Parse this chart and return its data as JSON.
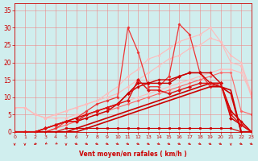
{
  "xlabel": "Vent moyen/en rafales ( km/h )",
  "xlim": [
    0,
    23
  ],
  "ylim": [
    0,
    37
  ],
  "yticks": [
    0,
    5,
    10,
    15,
    20,
    25,
    30,
    35
  ],
  "xticks": [
    0,
    1,
    2,
    3,
    4,
    5,
    6,
    7,
    8,
    9,
    10,
    11,
    12,
    13,
    14,
    15,
    16,
    17,
    18,
    19,
    20,
    21,
    22,
    23
  ],
  "background_color": "#d0eeee",
  "grid_color": "#ee8888",
  "lines": [
    {
      "x": [
        0,
        1,
        2,
        3,
        4,
        5,
        6,
        7,
        8,
        9,
        10,
        11,
        12,
        13,
        14,
        15,
        16,
        17,
        18,
        19,
        20,
        21,
        22,
        23
      ],
      "y": [
        7,
        7,
        5,
        4,
        4,
        4,
        5,
        5,
        6,
        7,
        8,
        9,
        10,
        11,
        12,
        13,
        14,
        15,
        16,
        17,
        18,
        18,
        17,
        11
      ],
      "color": "#ffbbbb",
      "marker": "D",
      "markersize": 1.5,
      "linewidth": 0.8,
      "zorder": 2
    },
    {
      "x": [
        0,
        1,
        2,
        3,
        4,
        5,
        6,
        7,
        8,
        9,
        10,
        11,
        12,
        13,
        14,
        15,
        16,
        17,
        18,
        19,
        20,
        21,
        22,
        23
      ],
      "y": [
        7,
        7,
        5,
        4,
        5,
        6,
        7,
        8,
        9,
        11,
        13,
        16,
        18,
        21,
        22,
        24,
        26,
        27,
        28,
        30,
        26,
        22,
        20,
        11
      ],
      "color": "#ffbbbb",
      "marker": "D",
      "markersize": 1.5,
      "linewidth": 0.8,
      "zorder": 2
    },
    {
      "x": [
        0,
        1,
        2,
        3,
        4,
        5,
        6,
        7,
        8,
        9,
        10,
        11,
        12,
        13,
        14,
        15,
        16,
        17,
        18,
        19,
        20,
        21,
        22,
        23
      ],
      "y": [
        7,
        7,
        5,
        4,
        5,
        6,
        7,
        8,
        9,
        10,
        11,
        13,
        15,
        17,
        19,
        21,
        22,
        24,
        25,
        27,
        26,
        20,
        19,
        10
      ],
      "color": "#ffbbbb",
      "marker": "D",
      "markersize": 1.5,
      "linewidth": 0.8,
      "zorder": 2
    },
    {
      "x": [
        0,
        1,
        2,
        3,
        4,
        5,
        6,
        7,
        8,
        9,
        10,
        11,
        12,
        13,
        14,
        15,
        16,
        17,
        18,
        19,
        20,
        21,
        22,
        23
      ],
      "y": [
        0,
        0,
        0,
        0,
        1,
        2,
        3,
        4,
        5,
        6,
        7,
        8,
        9,
        10,
        11,
        12,
        13,
        14,
        15,
        16,
        17,
        17,
        6,
        5
      ],
      "color": "#ff6666",
      "marker": "D",
      "markersize": 1.5,
      "linewidth": 0.8,
      "zorder": 2
    },
    {
      "x": [
        0,
        1,
        2,
        3,
        4,
        5,
        6,
        7,
        8,
        9,
        10,
        11,
        12,
        13,
        14,
        15,
        16,
        17,
        18,
        19,
        20,
        21,
        22,
        23
      ],
      "y": [
        0,
        0,
        0,
        0,
        1,
        3,
        4,
        6,
        8,
        9,
        10,
        30,
        23,
        13,
        13,
        16,
        31,
        28,
        17,
        13,
        14,
        6,
        3,
        0
      ],
      "color": "#ee3333",
      "marker": "D",
      "markersize": 1.5,
      "linewidth": 0.9,
      "zorder": 3
    },
    {
      "x": [
        0,
        1,
        2,
        3,
        4,
        5,
        6,
        7,
        8,
        9,
        10,
        11,
        12,
        13,
        14,
        15,
        16,
        17,
        18,
        19,
        20,
        21,
        22,
        23
      ],
      "y": [
        0,
        0,
        0,
        1,
        2,
        3,
        3,
        4,
        5,
        6,
        8,
        11,
        13,
        14,
        15,
        15,
        16,
        17,
        17,
        17,
        14,
        6,
        3,
        0
      ],
      "color": "#cc0000",
      "marker": "P",
      "markersize": 2,
      "linewidth": 1.0,
      "zorder": 4
    },
    {
      "x": [
        0,
        1,
        2,
        3,
        4,
        5,
        6,
        7,
        8,
        9,
        10,
        11,
        12,
        13,
        14,
        15,
        16,
        17,
        18,
        19,
        20,
        21,
        22,
        23
      ],
      "y": [
        0,
        0,
        0,
        1,
        2,
        3,
        4,
        5,
        6,
        7,
        8,
        11,
        14,
        14,
        14,
        14,
        16,
        17,
        17,
        14,
        14,
        4,
        2,
        0
      ],
      "color": "#cc0000",
      "marker": "D",
      "markersize": 2,
      "linewidth": 1.0,
      "zorder": 4
    },
    {
      "x": [
        0,
        1,
        2,
        3,
        4,
        5,
        6,
        7,
        8,
        9,
        10,
        11,
        12,
        13,
        14,
        15,
        16,
        17,
        18,
        19,
        20,
        21,
        22,
        23
      ],
      "y": [
        0,
        0,
        0,
        1,
        2,
        3,
        3,
        5,
        6,
        7,
        8,
        9,
        15,
        12,
        12,
        11,
        12,
        13,
        14,
        14,
        14,
        5,
        2,
        0
      ],
      "color": "#dd1111",
      "marker": "D",
      "markersize": 2,
      "linewidth": 1.0,
      "zorder": 4
    },
    {
      "x": [
        0,
        1,
        2,
        3,
        4,
        5,
        6,
        7,
        8,
        9,
        10,
        11,
        12,
        13,
        14,
        15,
        16,
        17,
        18,
        19,
        20,
        21,
        22,
        23
      ],
      "y": [
        0,
        0,
        0,
        0,
        0,
        1,
        1,
        1,
        1,
        1,
        1,
        1,
        1,
        1,
        1,
        1,
        1,
        1,
        1,
        1,
        1,
        1,
        0,
        0
      ],
      "color": "#cc0000",
      "marker": "s",
      "markersize": 1.5,
      "linewidth": 0.8,
      "zorder": 3
    },
    {
      "x": [
        0,
        1,
        2,
        3,
        4,
        5,
        6,
        7,
        8,
        9,
        10,
        11,
        12,
        13,
        14,
        15,
        16,
        17,
        18,
        19,
        20,
        21,
        22,
        23
      ],
      "y": [
        0,
        0,
        0,
        0,
        0,
        0,
        1,
        2,
        3,
        4,
        5,
        6,
        7,
        8,
        9,
        10,
        11,
        12,
        13,
        14,
        13,
        12,
        0,
        0
      ],
      "color": "#cc0000",
      "marker": null,
      "markersize": 0,
      "linewidth": 1.2,
      "zorder": 3
    },
    {
      "x": [
        0,
        1,
        2,
        3,
        4,
        5,
        6,
        7,
        8,
        9,
        10,
        11,
        12,
        13,
        14,
        15,
        16,
        17,
        18,
        19,
        20,
        21,
        22,
        23
      ],
      "y": [
        0,
        0,
        0,
        0,
        0,
        0,
        0,
        1,
        2,
        3,
        4,
        5,
        6,
        7,
        8,
        9,
        10,
        11,
        12,
        13,
        13,
        11,
        0,
        0
      ],
      "color": "#cc0000",
      "marker": null,
      "markersize": 0,
      "linewidth": 1.2,
      "zorder": 3
    }
  ],
  "arrow_angles": [
    0,
    0,
    -45,
    -30,
    -30,
    0,
    45,
    45,
    45,
    45,
    45,
    45,
    45,
    45,
    45,
    45,
    45,
    45,
    45,
    45,
    45,
    0,
    45,
    45
  ]
}
